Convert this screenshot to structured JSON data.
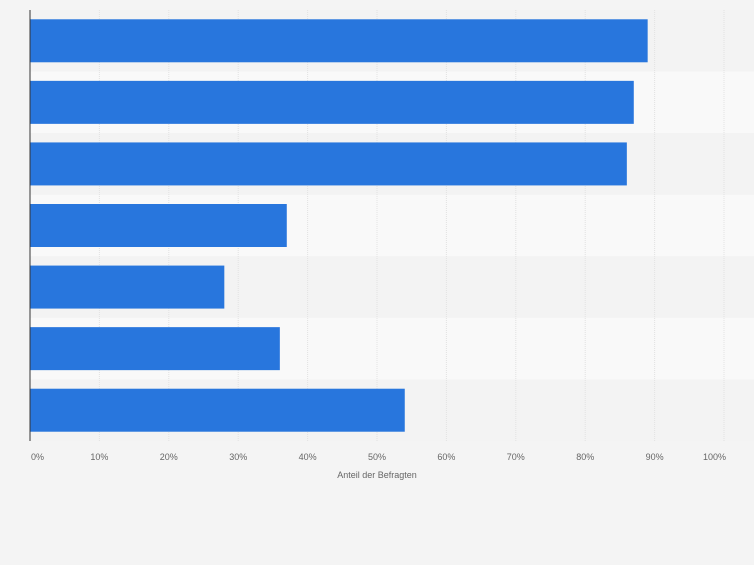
{
  "chart_data": {
    "type": "bar",
    "orientation": "horizontal",
    "title": "",
    "xlabel": "Anteil der Befragten",
    "ylabel": "",
    "categories": [
      "",
      "",
      "",
      "",
      "",
      "",
      ""
    ],
    "values": [
      89,
      87,
      86,
      37,
      28,
      36,
      54
    ],
    "xlim": [
      0,
      100
    ],
    "ticks": [
      "0%",
      "10%",
      "20%",
      "30%",
      "40%",
      "50%",
      "60%",
      "70%",
      "80%",
      "90%",
      "100%"
    ],
    "grid": true,
    "legend": "none",
    "colors": {
      "bar": "#2876dd",
      "background": "#f4f4f4",
      "band_light": "#f9f9f9",
      "band_dark": "#f3f3f3",
      "grid": "#e2e2e2",
      "axis": "#333333",
      "tick_label": "#666666"
    }
  }
}
